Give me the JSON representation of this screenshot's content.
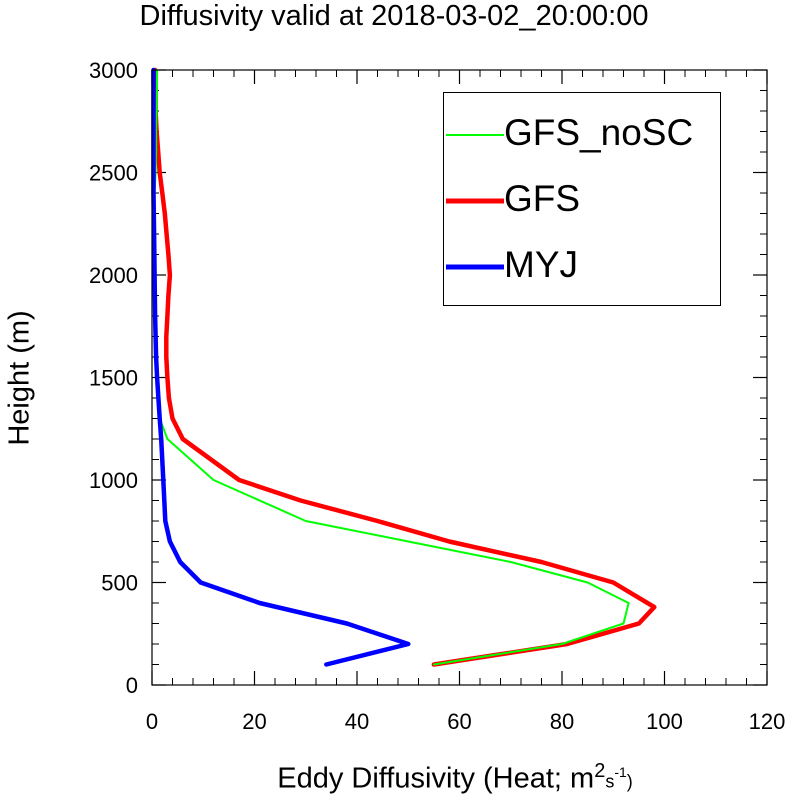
{
  "chart_data": {
    "type": "line",
    "title": "Diffusivity valid at 2018-03-02_20:00:00",
    "xlabel": "Eddy Diffusivity (Heat; m",
    "xlabel_sup": "2",
    "xlabel_unit_tail": "s",
    "xlabel_unit_sup": "-1",
    "xlabel_close": ")",
    "ylabel": "Height (m)",
    "xlim": [
      0,
      120
    ],
    "ylim": [
      0,
      3000
    ],
    "xticks": [
      0,
      20,
      40,
      60,
      80,
      100,
      120
    ],
    "yticks": [
      0,
      500,
      1000,
      1500,
      2000,
      2500,
      3000
    ],
    "legend_position": "top-right",
    "series": [
      {
        "name": "GFS_noSC",
        "color": "#00ff00",
        "linewidth": "thin",
        "x": [
          55,
          80,
          92,
          93,
          85,
          70,
          50,
          30,
          12,
          3,
          1.5,
          1,
          1,
          0.8,
          0.8,
          0.6,
          0.6,
          0.5,
          0.5,
          0.5,
          0.5,
          0.5,
          0.7,
          0.8,
          0.8,
          0.9,
          1
        ],
        "y": [
          100,
          200,
          300,
          400,
          500,
          600,
          700,
          800,
          1000,
          1200,
          1300,
          1400,
          1500,
          1600,
          1700,
          1800,
          1900,
          2000,
          2100,
          2200,
          2300,
          2400,
          2500,
          2600,
          2700,
          2800,
          3000
        ]
      },
      {
        "name": "GFS",
        "color": "#ff0000",
        "linewidth": "thick",
        "x": [
          55,
          81,
          95,
          98,
          90,
          76,
          58,
          44,
          29,
          17,
          6,
          4,
          3.3,
          3,
          2.8,
          2.8,
          3,
          3.2,
          3.5,
          3.2,
          2.5,
          2,
          1.5,
          1.2,
          0.9,
          0.7,
          0.7,
          0.6
        ],
        "y": [
          100,
          200,
          300,
          380,
          500,
          600,
          700,
          800,
          900,
          1000,
          1200,
          1300,
          1400,
          1500,
          1600,
          1700,
          1800,
          1900,
          2000,
          2100,
          2300,
          2400,
          2500,
          2600,
          2700,
          2800,
          2900,
          3000
        ]
      },
      {
        "name": "MYJ",
        "color": "#0000ff",
        "linewidth": "thick",
        "x": [
          34,
          50,
          38,
          21,
          9.5,
          5.5,
          3.5,
          2.6,
          2.2,
          1.8,
          1.5,
          1,
          0.8,
          0.6,
          0.5,
          0.4,
          0.3,
          0.3,
          0.3,
          0.3
        ],
        "y": [
          100,
          200,
          300,
          400,
          500,
          600,
          700,
          800,
          1000,
          1200,
          1300,
          1500,
          1600,
          1800,
          2000,
          2200,
          2400,
          2600,
          2800,
          3000
        ]
      }
    ]
  },
  "legend": {
    "items": [
      {
        "label": "GFS_noSC",
        "color": "#00ff00"
      },
      {
        "label": "GFS",
        "color": "#ff0000"
      },
      {
        "label": "MYJ",
        "color": "#0000ff"
      }
    ]
  }
}
